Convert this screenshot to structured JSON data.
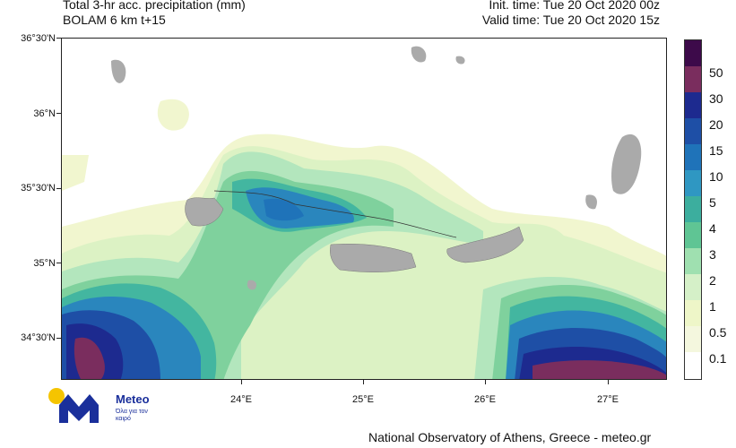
{
  "header": {
    "line1_left": "Total 3-hr acc. precipitation (mm)",
    "line2_left": "BOLAM 6 km t+15",
    "line1_right": "Init. time: Tue 20 Oct 2020 00z",
    "line2_right": "Valid time: Tue 20 Oct 2020 15z"
  },
  "axes": {
    "lat_labels": [
      "36°30'N",
      "36°N",
      "35°30'N",
      "35°N",
      "34°30'N"
    ],
    "lon_labels": [
      "24°E",
      "25°E",
      "26°E",
      "27°E"
    ]
  },
  "colorbar": {
    "labels": [
      "50",
      "30",
      "20",
      "15",
      "10",
      "5",
      "4",
      "3",
      "2",
      "1",
      "0.5",
      "0.1"
    ],
    "colors": [
      "#3d0a4a",
      "#7a2d5e",
      "#1d2a8f",
      "#1e4fa6",
      "#1f73b9",
      "#2f97c2",
      "#3cae9e",
      "#5fc594",
      "#9fe0b0",
      "#d5f0c8",
      "#eef6c8",
      "#f4f7de",
      "#ffffff"
    ]
  },
  "logo": {
    "name": "Meteo",
    "tagline": "Όλα για τον καιρό"
  },
  "footer": "National Observatory of Athens, Greece - meteo.gr"
}
